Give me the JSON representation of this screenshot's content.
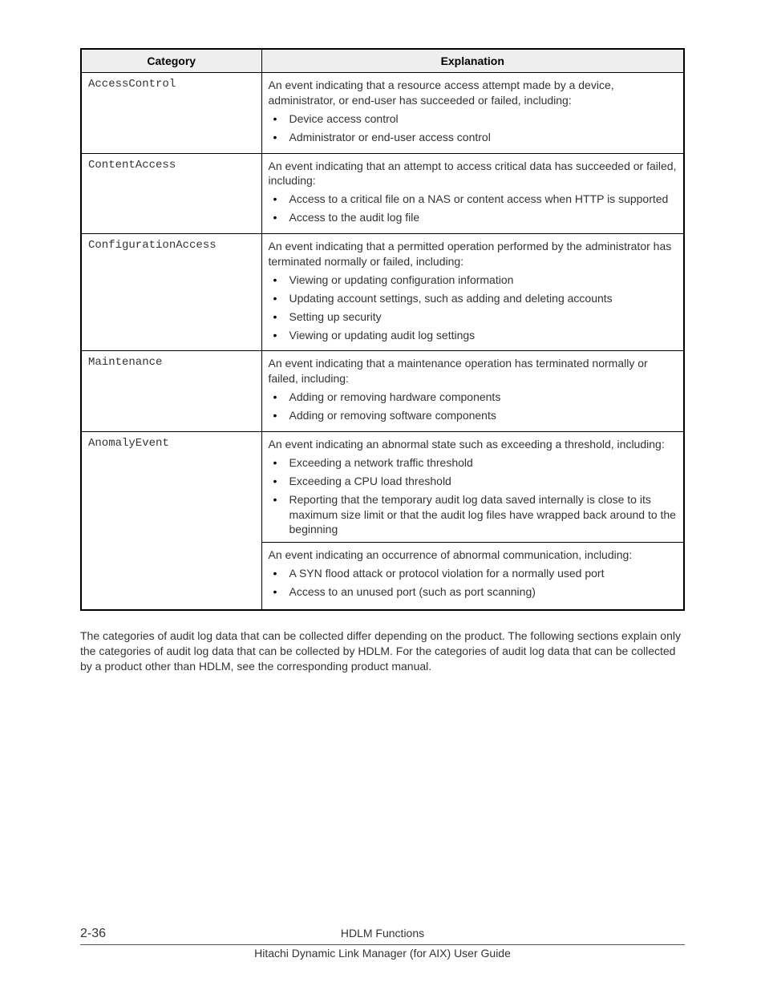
{
  "table": {
    "header": {
      "category": "Category",
      "explanation": "Explanation"
    },
    "rows": [
      {
        "category": "AccessControl",
        "intro": "An event indicating that a resource access attempt made by a device, administrator, or end-user has succeeded or failed, including:",
        "bullets": [
          "Device access control",
          "Administrator or end-user access control"
        ]
      },
      {
        "category": "ContentAccess",
        "intro": "An event indicating that an attempt to access critical data has succeeded or failed, including:",
        "bullets": [
          "Access to a critical file on a NAS or content access when HTTP is supported",
          "Access to the audit log file"
        ]
      },
      {
        "category": "ConfigurationAccess",
        "intro": "An event indicating that a permitted operation performed by the administrator has terminated normally or failed, including:",
        "bullets": [
          "Viewing or updating configuration information",
          "Updating account settings, such as adding and deleting accounts",
          "Setting up security",
          "Viewing or updating audit log settings"
        ]
      },
      {
        "category": "Maintenance",
        "intro": "An event indicating that a maintenance operation has terminated normally or failed, including:",
        "bullets": [
          "Adding or removing hardware components",
          "Adding or removing software components"
        ]
      },
      {
        "category": "AnomalyEvent",
        "intro": "An event indicating an abnormal state such as exceeding a threshold, including:",
        "bullets": [
          "Exceeding a network traffic threshold",
          "Exceeding a CPU load threshold",
          "Reporting that the temporary audit log data saved internally is close to its maximum size limit or that the audit log files have wrapped back around to the beginning"
        ],
        "sub_intro": "An event indicating an occurrence of abnormal communication, including:",
        "sub_bullets": [
          "A SYN flood attack or protocol violation for a normally used port",
          "Access to an unused port (such as port scanning)"
        ]
      }
    ]
  },
  "body_paragraph": "The categories of audit log data that can be collected differ depending on the product. The following sections explain only the categories of audit log data that can be collected by HDLM. For the categories of audit log data that can be collected by a product other than HDLM, see the corresponding product manual.",
  "footer": {
    "page_number": "2-36",
    "section": "HDLM Functions",
    "doc_title": "Hitachi Dynamic Link Manager (for AIX) User Guide"
  },
  "colors": {
    "header_bg": "#eeeeee",
    "border": "#000000",
    "category_text": "#888888",
    "body_text": "#333333"
  }
}
